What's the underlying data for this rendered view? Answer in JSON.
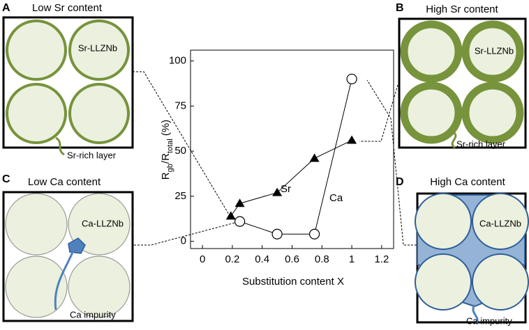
{
  "chart_data": {
    "type": "line",
    "ylabel": [
      "R",
      "gb",
      "/R",
      "total",
      " (%)"
    ],
    "xlabel": "Substitution content X",
    "xlim": [
      -0.08,
      1.28
    ],
    "xticks": [
      0,
      0.2,
      0.4,
      0.6,
      0.8,
      1,
      1.2
    ],
    "ylim": [
      -4,
      106
    ],
    "yticks": [
      0,
      25,
      50,
      75,
      100
    ],
    "series": [
      {
        "name": "Sr",
        "color": "#000000",
        "marker": "triangle",
        "x": [
          0.19,
          0.25,
          0.5,
          0.75,
          1.0
        ],
        "values": [
          14,
          21,
          27,
          46,
          56
        ]
      },
      {
        "name": "Ca",
        "color": "#000000",
        "marker": "circle",
        "x": [
          0.25,
          0.5,
          0.75,
          1.0
        ],
        "values": [
          11,
          4,
          4,
          90
        ]
      }
    ]
  },
  "panels": [
    {
      "letter": "A",
      "title": "Low Sr content",
      "labels": [
        "Sr-LLZNb",
        "Sr-rich layer"
      ]
    },
    {
      "letter": "B",
      "title": "High Sr content",
      "labels": [
        "Sr-LLZNb",
        "Sr-rich layer"
      ]
    },
    {
      "letter": "C",
      "title": "Low Ca content",
      "labels": [
        "Ca-LLZNb",
        "Ca impurity"
      ]
    },
    {
      "letter": "D",
      "title": "High Ca content",
      "labels": [
        "Ca-LLZNb",
        "Ca impurity"
      ]
    }
  ]
}
